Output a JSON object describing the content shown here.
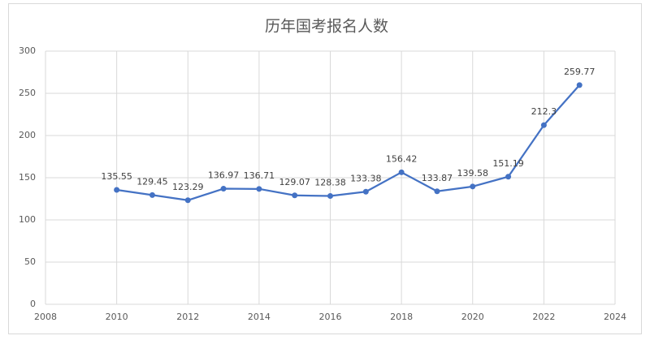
{
  "chart_data": {
    "type": "line",
    "title": "历年国考报名人数",
    "x": [
      2010,
      2011,
      2012,
      2013,
      2014,
      2015,
      2016,
      2017,
      2018,
      2019,
      2020,
      2021,
      2022,
      2023
    ],
    "series": [
      {
        "color": "#4472c4",
        "values": [
          135.55,
          129.45,
          123.29,
          136.97,
          136.71,
          129.07,
          128.38,
          133.38,
          156.42,
          133.87,
          139.58,
          151.19,
          212.3,
          259.77
        ]
      }
    ],
    "xlim": [
      2008,
      2024
    ],
    "xticks": [
      2008,
      2010,
      2012,
      2014,
      2016,
      2018,
      2020,
      2022,
      2024
    ],
    "ylim": [
      0,
      300
    ],
    "yticks": [
      0,
      50,
      100,
      150,
      200,
      250,
      300
    ],
    "grid": true
  }
}
